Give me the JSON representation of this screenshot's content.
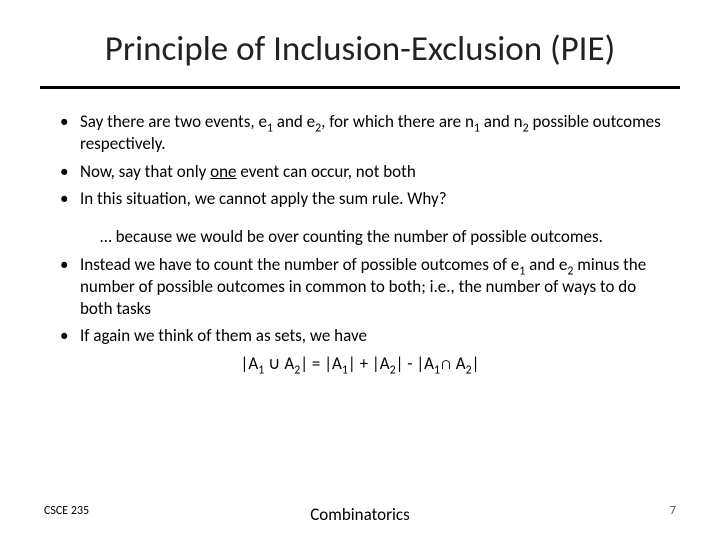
{
  "title": "Principle of Inclusion-Exclusion (PIE)",
  "bullets": {
    "b1_pre": "Say there are two events, e",
    "b1_s1": "1",
    "b1_mid1": " and e",
    "b1_s2": "2",
    "b1_mid2": ", for which there are n",
    "b1_s3": "1",
    "b1_mid3": " and n",
    "b1_s4": "2",
    "b1_post": " possible outcomes respectively.",
    "b2_pre": "Now, say that only ",
    "b2_u": "one",
    "b2_post": " event can occur, not both",
    "b3": "In this situation, we cannot apply the sum rule. Why?",
    "indent": "… because we would be over counting the number of possible outcomes.",
    "b4_pre": "Instead we have to count the number of possible outcomes of e",
    "b4_s1": "1",
    "b4_mid1": " and e",
    "b4_s2": "2",
    "b4_post": " minus the number of possible outcomes in common to both; i.e., the number of ways to do both tasks",
    "b5": "If again we think of them as sets, we have"
  },
  "formula": {
    "pre": "|A",
    "s1": "1",
    "cup": " ∪ A",
    "s2": "2",
    "eq": "| = |A",
    "s3": "1",
    "plus": "| + |A",
    "s4": "2",
    "minus": "| - |A",
    "s5": "1",
    "cap": "∩ A",
    "s6": "2",
    "end": "|"
  },
  "footer": {
    "course": "CSCE 235",
    "topic": "Combinatorics",
    "page": "7"
  },
  "colors": {
    "text": "#000000",
    "rule": "#000000",
    "bg": "#ffffff"
  }
}
